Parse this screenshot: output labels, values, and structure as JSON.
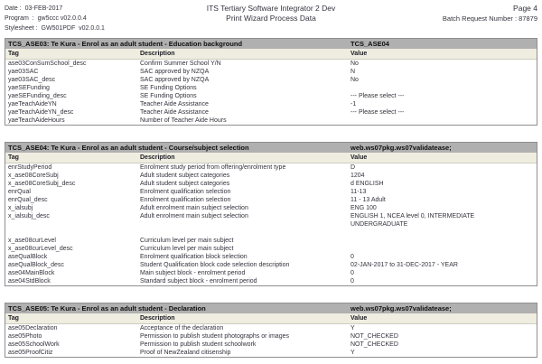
{
  "page_header": {
    "date_label": "Date :",
    "date": "03-FEB-2017",
    "program_label": "Program  :",
    "program": "gw5ccc v02.0.0.4",
    "stylesheet_label": "Stylesheet :",
    "stylesheet": "GW501PDF  v02.0.0.1",
    "title_line1": "ITS Tertiary Software Integrator 2 Dev",
    "title_line2": "Print Wizard Process Data",
    "page_label": "Page 4",
    "batch_label": "Batch Request Number :",
    "batch_number": "87879"
  },
  "columns": [
    "Tag",
    "Description",
    "Value"
  ],
  "colors": {
    "section_bar_bg": "#b0b0b0",
    "column_header_bg": "#efede0",
    "table_border": "#8f8f8f",
    "text": "#33333d"
  },
  "sections": [
    {
      "title": "TCS_ASE03: Te Kura - Enrol as an adult student - Education background",
      "proc": "TCS_ASE04",
      "rows": [
        [
          "ase03ConSumSchool_desc",
          "Confirm Summer School Y/N",
          "No"
        ],
        [
          "yae03SAC",
          "SAC approved by NZQA",
          "N"
        ],
        [
          "yae03SAC_desc",
          "SAC approved by NZQA",
          "No"
        ],
        [
          "yaeSEFunding",
          "SE Funding Options",
          ""
        ],
        [
          "yaeSEFunding_desc",
          "SE Funding Options",
          "--- Please select ---"
        ],
        [
          "yaeTeachAideYN",
          "Teacher Aide Assistance",
          "-1"
        ],
        [
          "yaeTeachAideYN_desc",
          "Teacher Aide Assistance",
          "--- Please select ---"
        ],
        [
          "yaeTeachAideHours",
          "Number of Teacher Aide Hours",
          ""
        ]
      ]
    },
    {
      "title": "TCS_ASE04: Te Kura - Enrol as an adult student - Course/subject selection",
      "proc": "web.ws07pkg.ws07validatease;",
      "rows": [
        [
          "enrStudyPeriod",
          "Enrolment study period from offering/enrolment type",
          "D"
        ],
        [
          "x_ase08CoreSubj",
          "Adult student subject categories",
          "1204"
        ],
        [
          "x_ase08CoreSubj_desc",
          "Adult student subject categories",
          "d ENGLISH"
        ],
        [
          "enrQual",
          "Enrolment qualification selection",
          "11-13"
        ],
        [
          "enrQual_desc",
          "Enrolment qualification selection",
          "11 - 13 Adult"
        ],
        [
          "x_ialsubj",
          "Adult enrolment main subject selection",
          "ENG 100"
        ],
        [
          "x_ialsubj_desc",
          "Adult enrolment main subject selection",
          "ENGLISH 1, NCEA level 0, INTERMEDIATE\nUNDERGRADUATE"
        ],
        [
          "",
          "",
          ""
        ],
        [
          "x_ase08curLevel",
          "Curriculum level per main subject",
          ""
        ],
        [
          "x_ase08curLevel_desc",
          "Curriculum level per main subject",
          ""
        ],
        [
          "aseQualBlock",
          "Enrolment qualification block selection",
          "0"
        ],
        [
          "aseQualBlock_desc",
          "Student Qualification block code selection description",
          "02-JAN-2017 to 31-DEC-2017 - YEAR"
        ],
        [
          "ase04MainBlock",
          "Main subject block - enrolment period",
          "0"
        ],
        [
          "ase04StdBlock",
          "Standard subject block - enrolment period",
          "0"
        ]
      ]
    },
    {
      "title": "TCS_ASE05: Te Kura - Enrol as an adult student - Declaration",
      "proc": "web.ws07pkg.ws07validatease;",
      "rows": [
        [
          "ase05Declaration",
          "Acceptance of the declaration",
          "Y"
        ],
        [
          "ase05Photo",
          "Permission to publish student photographs or images",
          "NOT_CHECKED"
        ],
        [
          "ase05SchoolWork",
          "Permission to publish student schoolwork",
          "NOT_CHECKED"
        ],
        [
          "ase05ProofCitiz",
          "Proof of NewZealand citisenship",
          "Y"
        ]
      ]
    }
  ]
}
